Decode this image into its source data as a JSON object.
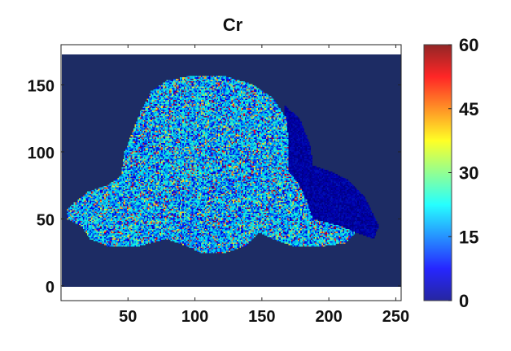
{
  "chart_data": {
    "type": "heatmap",
    "title": "Cr",
    "xlabel": "",
    "ylabel": "",
    "xlim": [
      0,
      254
    ],
    "ylim": [
      -11,
      180
    ],
    "image_extent": {
      "x": [
        1,
        256
      ],
      "y": [
        0,
        172
      ]
    },
    "xticks": [
      "50",
      "100",
      "150",
      "200",
      "250"
    ],
    "xtick_values": [
      50,
      100,
      150,
      200,
      250
    ],
    "yticks": [
      "0",
      "50",
      "100",
      "150"
    ],
    "ytick_values": [
      0,
      50,
      100,
      150
    ],
    "colormap": "jet",
    "colorbar": {
      "range": [
        0,
        60
      ],
      "ticks": [
        "0",
        "15",
        "30",
        "45",
        "60"
      ],
      "tick_values": [
        0,
        15,
        30,
        45,
        60
      ],
      "placement": "right"
    },
    "background_value": 0,
    "sample_outline": [
      [
        5,
        57
      ],
      [
        10,
        62
      ],
      [
        20,
        70
      ],
      [
        35,
        75
      ],
      [
        45,
        82
      ],
      [
        48,
        100
      ],
      [
        52,
        110
      ],
      [
        60,
        130
      ],
      [
        68,
        145
      ],
      [
        80,
        153
      ],
      [
        100,
        157
      ],
      [
        125,
        156
      ],
      [
        145,
        150
      ],
      [
        160,
        140
      ],
      [
        170,
        125
      ],
      [
        172,
        105
      ],
      [
        172,
        85
      ],
      [
        180,
        75
      ],
      [
        185,
        65
      ],
      [
        190,
        50
      ],
      [
        210,
        45
      ],
      [
        222,
        40
      ],
      [
        215,
        32
      ],
      [
        200,
        30
      ],
      [
        175,
        30
      ],
      [
        160,
        35
      ],
      [
        150,
        40
      ],
      [
        140,
        30
      ],
      [
        125,
        25
      ],
      [
        105,
        25
      ],
      [
        95,
        30
      ],
      [
        80,
        35
      ],
      [
        60,
        30
      ],
      [
        35,
        30
      ],
      [
        22,
        35
      ],
      [
        15,
        45
      ],
      [
        5,
        50
      ]
    ],
    "faint_region_outline": [
      [
        168,
        135
      ],
      [
        180,
        125
      ],
      [
        188,
        105
      ],
      [
        190,
        90
      ],
      [
        205,
        85
      ],
      [
        218,
        78
      ],
      [
        230,
        65
      ],
      [
        240,
        45
      ],
      [
        236,
        35
      ],
      [
        222,
        40
      ],
      [
        210,
        45
      ],
      [
        190,
        50
      ],
      [
        185,
        65
      ],
      [
        172,
        85
      ]
    ],
    "sample_value_range": [
      5,
      60
    ],
    "faint_region_value_range": [
      2,
      10
    ]
  }
}
